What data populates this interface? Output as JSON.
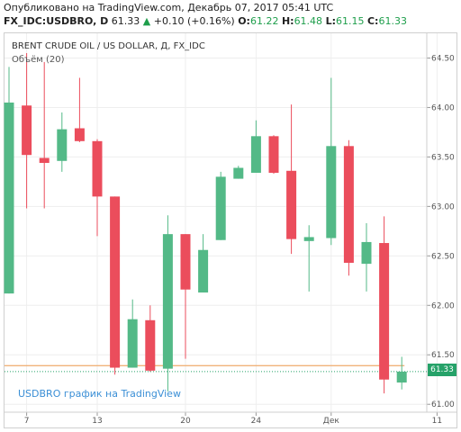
{
  "header": {
    "published": "Опубликовано на TradingView.com, Декабрь 07, 2017 05:41 UTC",
    "symbol": "FX_IDC:USDBRO, D",
    "last": "61.33",
    "change_arrow": "▲",
    "change": "+0.10 (+0.16%)",
    "o_label": "O:",
    "o_value": "61.22",
    "h_label": "H:",
    "h_value": "61.48",
    "l_label": "L:",
    "l_value": "61.15",
    "c_label": "C:",
    "c_value": "61.33"
  },
  "chart_labels": {
    "title": "BRENT CRUDE OIL / US DOLLAR, Д, FX_IDC",
    "volume": "Объём (20)",
    "watermark": "USDBRO график на TradingView",
    "price_tag": "61.33"
  },
  "colors": {
    "up": "#53b987",
    "down": "#eb4d5c",
    "grid": "#eeeeee",
    "last_line": "#26a269",
    "ma_line": "#f0b27a"
  },
  "chart_data": {
    "type": "candlestick",
    "title": "BRENT CRUDE OIL / US DOLLAR, Д, FX_IDC",
    "ylim": [
      60.92,
      64.75
    ],
    "y_ticks": [
      61.0,
      61.5,
      62.0,
      62.5,
      63.0,
      63.5,
      64.0,
      64.5
    ],
    "y_tick_labels": [
      "61.00",
      "61.50",
      "62.00",
      "62.50",
      "63.00",
      "63.50",
      "64.00",
      "64.50"
    ],
    "x_tick_labels": [
      {
        "label": "7",
        "index": 1
      },
      {
        "label": "13",
        "index": 5
      },
      {
        "label": "20",
        "index": 10
      },
      {
        "label": "24",
        "index": 14
      },
      {
        "label": "Дек",
        "index": 18
      },
      {
        "label": "11",
        "index": 24
      }
    ],
    "grid": true,
    "last_value": 61.33,
    "ma_value": 61.39,
    "candles": [
      {
        "o": 62.12,
        "h": 64.41,
        "l": 62.12,
        "c": 64.05
      },
      {
        "o": 64.02,
        "h": 64.55,
        "l": 62.98,
        "c": 63.52
      },
      {
        "o": 63.49,
        "h": 64.46,
        "l": 62.98,
        "c": 63.44
      },
      {
        "o": 63.46,
        "h": 63.95,
        "l": 63.35,
        "c": 63.78
      },
      {
        "o": 63.79,
        "h": 64.3,
        "l": 63.65,
        "c": 63.66
      },
      {
        "o": 63.66,
        "h": 63.68,
        "l": 62.7,
        "c": 63.1
      },
      {
        "o": 63.1,
        "h": 63.1,
        "l": 61.3,
        "c": 61.37
      },
      {
        "o": 61.37,
        "h": 62.06,
        "l": 61.37,
        "c": 61.86
      },
      {
        "o": 61.85,
        "h": 62.0,
        "l": 61.33,
        "c": 61.34
      },
      {
        "o": 61.36,
        "h": 62.91,
        "l": 61.13,
        "c": 62.72
      },
      {
        "o": 62.72,
        "h": 62.72,
        "l": 61.46,
        "c": 62.16
      },
      {
        "o": 62.13,
        "h": 62.72,
        "l": 62.13,
        "c": 62.56
      },
      {
        "o": 62.66,
        "h": 63.35,
        "l": 62.66,
        "c": 63.3
      },
      {
        "o": 63.28,
        "h": 63.41,
        "l": 63.28,
        "c": 63.39
      },
      {
        "o": 63.34,
        "h": 63.87,
        "l": 63.34,
        "c": 63.71
      },
      {
        "o": 63.71,
        "h": 63.72,
        "l": 63.33,
        "c": 63.34
      },
      {
        "o": 63.36,
        "h": 64.03,
        "l": 62.52,
        "c": 62.67
      },
      {
        "o": 62.65,
        "h": 62.81,
        "l": 62.14,
        "c": 62.69
      },
      {
        "o": 62.68,
        "h": 64.3,
        "l": 62.61,
        "c": 63.61
      },
      {
        "o": 63.61,
        "h": 63.67,
        "l": 62.3,
        "c": 62.43
      },
      {
        "o": 62.42,
        "h": 62.83,
        "l": 62.14,
        "c": 62.64
      },
      {
        "o": 62.63,
        "h": 62.9,
        "l": 61.11,
        "c": 61.25
      },
      {
        "o": 61.22,
        "h": 61.48,
        "l": 61.15,
        "c": 61.33
      }
    ]
  }
}
